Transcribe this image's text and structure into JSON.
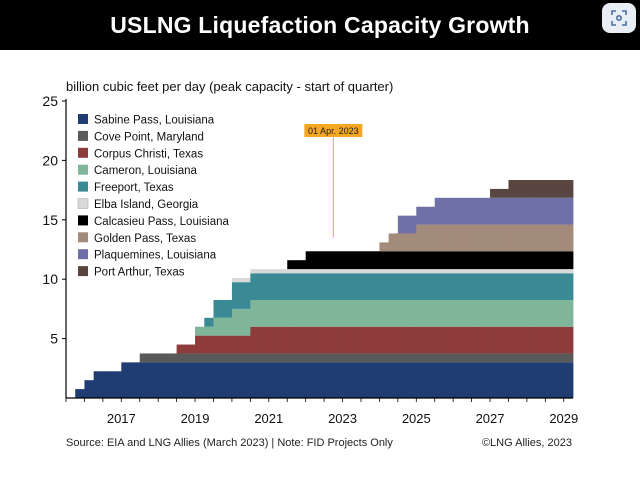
{
  "window": {
    "title": "USLNG Liquefaction Capacity Growth",
    "corner_icon": "screen-capture-icon"
  },
  "footer": {
    "source": "Source: EIA and LNG Allies (March 2023) | Note: FID Projects Only",
    "copyright": "©LNG Allies, 2023"
  },
  "chart_data": {
    "type": "area",
    "title": "USLNG Liquefaction Capacity Growth",
    "ylabel": "billion cubic feet per day (peak capacity - start of quarter)",
    "xlabel": "",
    "ylim": [
      0,
      25
    ],
    "yticks": [
      5,
      10,
      15,
      20,
      25
    ],
    "xlim": [
      2016,
      2029.75
    ],
    "xticks": [
      2017,
      2019,
      2021,
      2023,
      2025,
      2027,
      2029
    ],
    "grid": false,
    "stacked": true,
    "step": true,
    "legend_position": "top-left",
    "annotation": {
      "label": "01 Apr. 2023",
      "x": 2023.25,
      "color": "#f5a623"
    },
    "series": [
      {
        "name": "Sabine Pass, Louisiana",
        "color": "#1f3d73",
        "steps": [
          [
            2016.25,
            0.75
          ],
          [
            2016.5,
            1.5
          ],
          [
            2016.75,
            2.25
          ],
          [
            2017.5,
            3.0
          ]
        ]
      },
      {
        "name": "Cove Point, Maryland",
        "color": "#595959",
        "steps": [
          [
            2018.0,
            0.75
          ]
        ]
      },
      {
        "name": "Corpus Christi, Texas",
        "color": "#8e3b3b",
        "steps": [
          [
            2019.0,
            0.75
          ],
          [
            2019.5,
            1.5
          ],
          [
            2021.0,
            2.25
          ]
        ]
      },
      {
        "name": "Cameron, Louisiana",
        "color": "#7fb69a",
        "steps": [
          [
            2019.5,
            0.75
          ],
          [
            2020.0,
            1.5
          ],
          [
            2020.5,
            2.25
          ]
        ]
      },
      {
        "name": "Freeport, Texas",
        "color": "#3a8a96",
        "steps": [
          [
            2019.75,
            0.75
          ],
          [
            2020.0,
            1.5
          ],
          [
            2020.5,
            2.25
          ]
        ]
      },
      {
        "name": "Elba Island, Georgia",
        "color": "#d9d9d9",
        "steps": [
          [
            2020.5,
            0.35
          ]
        ]
      },
      {
        "name": "Calcasieu Pass, Louisiana",
        "color": "#000000",
        "steps": [
          [
            2022.0,
            0.75
          ],
          [
            2022.5,
            1.5
          ]
        ]
      },
      {
        "name": "Golden Pass, Texas",
        "color": "#a38b7b",
        "steps": [
          [
            2024.5,
            0.75
          ],
          [
            2024.75,
            1.5
          ],
          [
            2025.5,
            2.25
          ]
        ]
      },
      {
        "name": "Plaquemines, Louisiana",
        "color": "#7070a8",
        "steps": [
          [
            2025.0,
            1.5
          ],
          [
            2026.0,
            2.25
          ]
        ]
      },
      {
        "name": "Port Arthur, Texas",
        "color": "#5a4640",
        "steps": [
          [
            2027.5,
            0.75
          ],
          [
            2028.0,
            1.5
          ]
        ]
      }
    ]
  }
}
